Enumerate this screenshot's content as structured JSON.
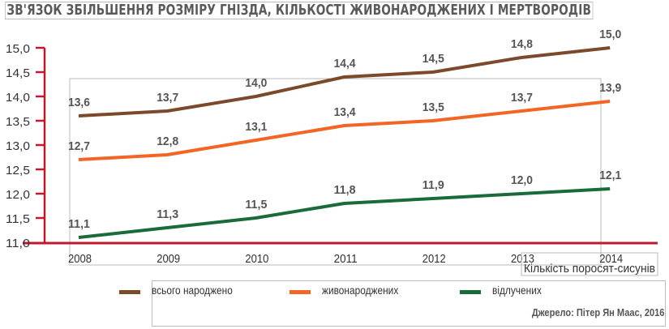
{
  "chart_data": {
    "type": "line",
    "title": "ЗВ'ЯЗОК ЗБІЛЬШЕННЯ РОЗМІРУ ГНІЗДА, КІЛЬКОСТІ ЖИВОНАРОДЖЕНИХ І МЕРТВОРОДІВ",
    "xlabel": "Кількість поросят-сисунів",
    "ylabel": "",
    "categories": [
      "2008",
      "2009",
      "2010",
      "2011",
      "2012",
      "2013",
      "2014"
    ],
    "y_ticks": [
      "11,0",
      "11,5",
      "12,0",
      "12,5",
      "13,0",
      "13,5",
      "14,0",
      "14,5",
      "15,0"
    ],
    "ylim": [
      11,
      15
    ],
    "series": [
      {
        "name": "всього народжено",
        "color": "#7b4a2a",
        "values": [
          13.6,
          13.7,
          14.0,
          14.4,
          14.5,
          14.8,
          15.0
        ],
        "labels": [
          "13,6",
          "13,7",
          "14,0",
          "14,4",
          "14,5",
          "14,8",
          "15,0"
        ]
      },
      {
        "name": "живонароджених",
        "color": "#f26524",
        "values": [
          12.7,
          12.8,
          13.1,
          13.4,
          13.5,
          13.7,
          13.9
        ],
        "labels": [
          "12,7",
          "12,8",
          "13,1",
          "13,4",
          "13,5",
          "13,7",
          "13,9"
        ]
      },
      {
        "name": "відлучених",
        "color": "#1a6b3a",
        "values": [
          11.1,
          11.3,
          11.5,
          11.8,
          11.9,
          12.0,
          12.1
        ],
        "labels": [
          "11,1",
          "11,3",
          "11,5",
          "11,8",
          "11,9",
          "12,0",
          "12,1"
        ]
      }
    ],
    "legend_position": "bottom",
    "source": "Джерело: Пітер Ян Маас, 2016",
    "axis_color": "#c0182c"
  }
}
